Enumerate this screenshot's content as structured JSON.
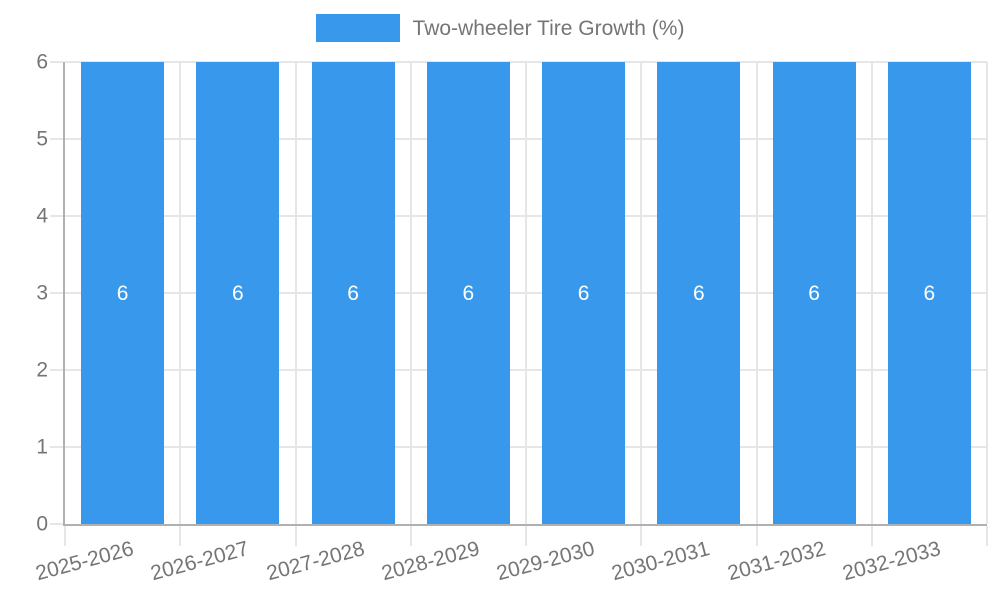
{
  "chart_data": {
    "type": "bar",
    "categories": [
      "2025-2026",
      "2026-2027",
      "2027-2028",
      "2028-2029",
      "2029-2030",
      "2030-2031",
      "2031-2032",
      "2032-2033"
    ],
    "series": [
      {
        "name": "Two-wheeler Tire Growth (%)",
        "values": [
          6,
          6,
          6,
          6,
          6,
          6,
          6,
          6
        ]
      }
    ],
    "bar_labels": [
      "6",
      "6",
      "6",
      "6",
      "6",
      "6",
      "6",
      "6"
    ],
    "title": "",
    "xlabel": "",
    "ylabel": "",
    "ylim": [
      0,
      6
    ],
    "yticks": [
      0,
      1,
      2,
      3,
      4,
      5,
      6
    ],
    "grid": true,
    "legend": {
      "label": "Two-wheeler Tire Growth (%)",
      "position": "top-center"
    },
    "colors": {
      "bar": "#3899EC",
      "grid": "#E6E6E6",
      "axis": "#B0B0B0",
      "text": "#757575",
      "bar_label": "#FFFFFF"
    }
  }
}
